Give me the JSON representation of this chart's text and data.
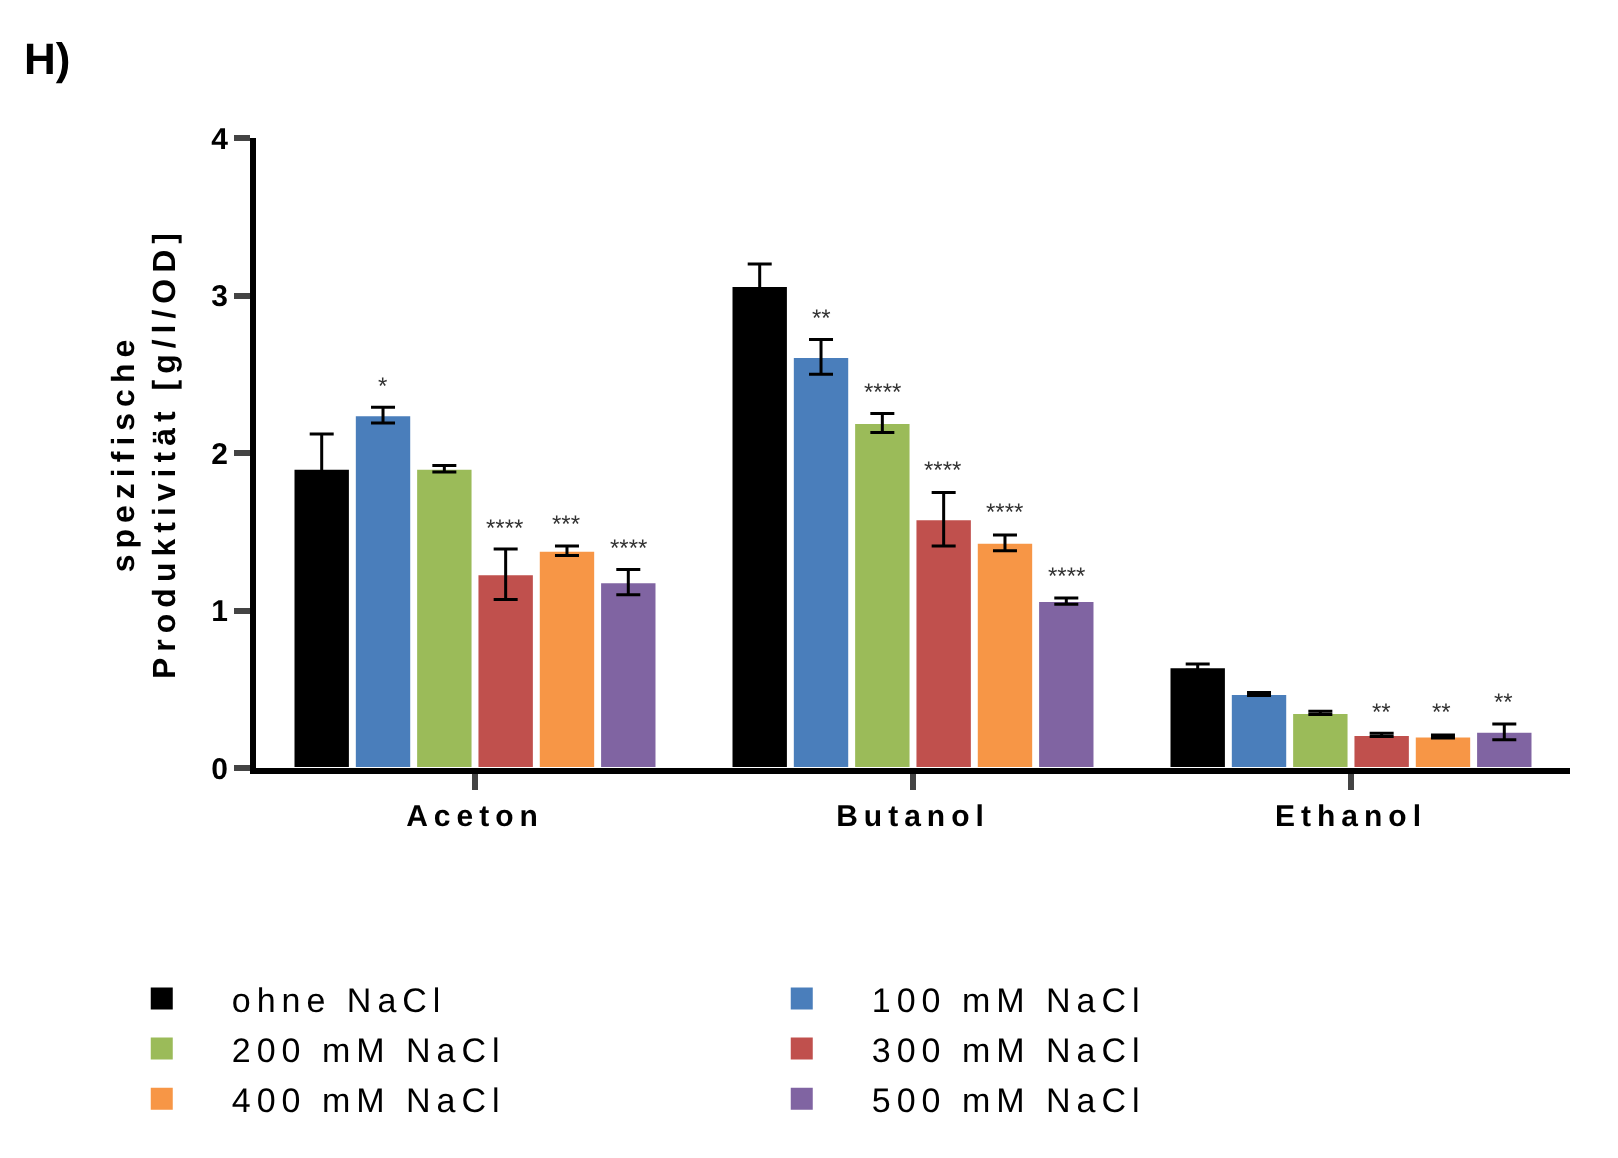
{
  "chart_data": {
    "type": "bar",
    "title": "H)",
    "ylabel": "spezifische\nProduktivität [g/l/OD]",
    "categories": [
      "Aceton",
      "Butanol",
      "Ethanol"
    ],
    "series": [
      {
        "name": "ohne NaCl",
        "color": "#000000",
        "values": [
          1.9,
          3.06,
          0.64
        ],
        "errors": [
          0.22,
          0.14,
          0.02
        ]
      },
      {
        "name": "100 mM NaCl",
        "color": "#4a7ebb",
        "values": [
          2.24,
          2.61,
          0.47
        ],
        "errors": [
          0.05,
          0.11,
          0.01
        ],
        "value_labels": [
          "*",
          "**",
          null
        ]
      },
      {
        "name": "200 mM NaCl",
        "color": "#9bbb59",
        "values": [
          1.9,
          2.19,
          0.35
        ],
        "errors": [
          0.02,
          0.06,
          0.01
        ],
        "value_labels": [
          null,
          "****",
          null
        ]
      },
      {
        "name": "300 mM NaCl",
        "color": "#c0504d",
        "values": [
          1.23,
          1.58,
          0.21
        ],
        "errors": [
          0.16,
          0.17,
          0.01
        ],
        "value_labels": [
          "****",
          "****",
          "**"
        ]
      },
      {
        "name": "400 mM NaCl",
        "color": "#f79646",
        "values": [
          1.38,
          1.43,
          0.2
        ],
        "errors": [
          0.03,
          0.05,
          0.01
        ],
        "value_labels": [
          "***",
          "****",
          "**"
        ]
      },
      {
        "name": "500 mM NaCl",
        "color": "#8064a2",
        "values": [
          1.18,
          1.06,
          0.23
        ],
        "errors": [
          0.08,
          0.02,
          0.05
        ],
        "value_labels": [
          "****",
          "****",
          "**"
        ]
      }
    ],
    "ylim": [
      0,
      4
    ],
    "yticks": [
      0,
      1,
      2,
      3,
      4
    ],
    "grid": false,
    "legend": "bottom"
  }
}
